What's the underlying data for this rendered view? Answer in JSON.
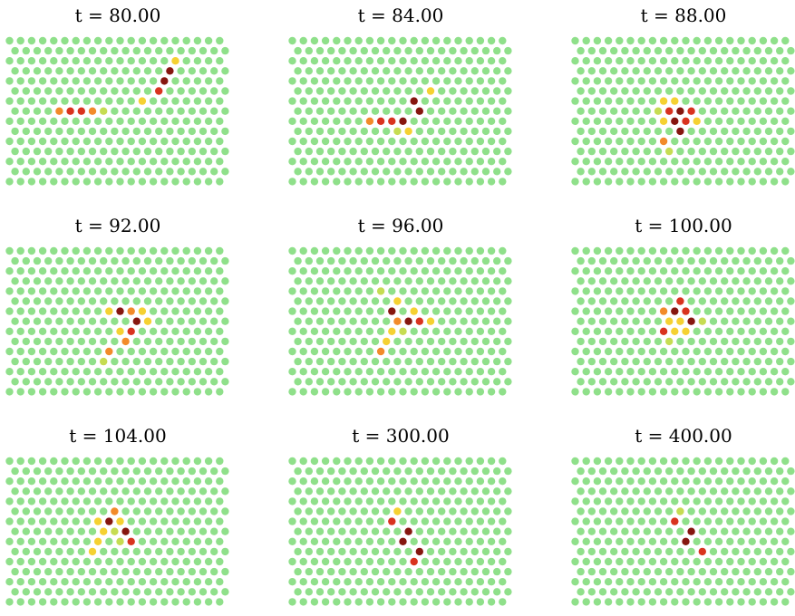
{
  "colors": {
    "background": "#ffffff",
    "bulk": "#8fe08a",
    "yellow": "#f5d132",
    "yellow_green": "#c6dc52",
    "orange": "#f28b2a",
    "red": "#d9331f",
    "dark_red": "#861710"
  },
  "lattice": {
    "rows": 15,
    "cols": 20
  },
  "panels": [
    {
      "title": "t = 80.00",
      "highlights": [
        {
          "row": 2,
          "col": 15,
          "color": "yellow"
        },
        {
          "row": 3,
          "col": 14,
          "color": "dark_red"
        },
        {
          "row": 4,
          "col": 14,
          "color": "dark_red"
        },
        {
          "row": 5,
          "col": 13,
          "color": "red"
        },
        {
          "row": 6,
          "col": 12,
          "color": "yellow"
        },
        {
          "row": 7,
          "col": 4,
          "color": "orange"
        },
        {
          "row": 7,
          "col": 5,
          "color": "red"
        },
        {
          "row": 7,
          "col": 6,
          "color": "red"
        },
        {
          "row": 7,
          "col": 7,
          "color": "orange"
        },
        {
          "row": 7,
          "col": 8,
          "color": "yellow_green"
        }
      ]
    },
    {
      "title": "t = 84.00",
      "highlights": [
        {
          "row": 5,
          "col": 12,
          "color": "yellow"
        },
        {
          "row": 6,
          "col": 11,
          "color": "dark_red"
        },
        {
          "row": 7,
          "col": 11,
          "color": "dark_red"
        },
        {
          "row": 8,
          "col": 10,
          "color": "dark_red"
        },
        {
          "row": 8,
          "col": 7,
          "color": "orange"
        },
        {
          "row": 8,
          "col": 8,
          "color": "red"
        },
        {
          "row": 8,
          "col": 9,
          "color": "red"
        },
        {
          "row": 9,
          "col": 10,
          "color": "yellow"
        },
        {
          "row": 9,
          "col": 9,
          "color": "yellow_green"
        }
      ]
    },
    {
      "title": "t = 88.00",
      "highlights": [
        {
          "row": 6,
          "col": 8,
          "color": "yellow"
        },
        {
          "row": 6,
          "col": 9,
          "color": "yellow"
        },
        {
          "row": 7,
          "col": 7,
          "color": "yellow_green"
        },
        {
          "row": 7,
          "col": 8,
          "color": "red"
        },
        {
          "row": 7,
          "col": 9,
          "color": "dark_red"
        },
        {
          "row": 7,
          "col": 10,
          "color": "red"
        },
        {
          "row": 8,
          "col": 8,
          "color": "yellow"
        },
        {
          "row": 8,
          "col": 9,
          "color": "dark_red"
        },
        {
          "row": 8,
          "col": 10,
          "color": "red"
        },
        {
          "row": 8,
          "col": 11,
          "color": "yellow"
        },
        {
          "row": 9,
          "col": 9,
          "color": "dark_red"
        },
        {
          "row": 10,
          "col": 8,
          "color": "orange"
        },
        {
          "row": 11,
          "col": 8,
          "color": "yellow_green"
        }
      ]
    },
    {
      "title": "t = 92.00",
      "highlights": [
        {
          "row": 6,
          "col": 9,
          "color": "yellow"
        },
        {
          "row": 6,
          "col": 10,
          "color": "dark_red"
        },
        {
          "row": 6,
          "col": 11,
          "color": "orange"
        },
        {
          "row": 6,
          "col": 12,
          "color": "yellow"
        },
        {
          "row": 7,
          "col": 11,
          "color": "dark_red"
        },
        {
          "row": 7,
          "col": 12,
          "color": "yellow"
        },
        {
          "row": 8,
          "col": 10,
          "color": "yellow"
        },
        {
          "row": 8,
          "col": 11,
          "color": "red"
        },
        {
          "row": 9,
          "col": 10,
          "color": "orange"
        },
        {
          "row": 10,
          "col": 9,
          "color": "orange"
        },
        {
          "row": 11,
          "col": 8,
          "color": "yellow_green"
        }
      ]
    },
    {
      "title": "t = 96.00",
      "highlights": [
        {
          "row": 4,
          "col": 8,
          "color": "yellow_green"
        },
        {
          "row": 5,
          "col": 9,
          "color": "yellow"
        },
        {
          "row": 6,
          "col": 9,
          "color": "dark_red"
        },
        {
          "row": 6,
          "col": 11,
          "color": "yellow"
        },
        {
          "row": 7,
          "col": 9,
          "color": "orange"
        },
        {
          "row": 7,
          "col": 10,
          "color": "dark_red"
        },
        {
          "row": 7,
          "col": 11,
          "color": "red"
        },
        {
          "row": 7,
          "col": 12,
          "color": "yellow"
        },
        {
          "row": 8,
          "col": 9,
          "color": "yellow"
        },
        {
          "row": 8,
          "col": 10,
          "color": "yellow_green"
        },
        {
          "row": 9,
          "col": 8,
          "color": "yellow"
        },
        {
          "row": 10,
          "col": 8,
          "color": "orange"
        }
      ]
    },
    {
      "title": "t = 100.00",
      "highlights": [
        {
          "row": 5,
          "col": 9,
          "color": "red"
        },
        {
          "row": 6,
          "col": 8,
          "color": "orange"
        },
        {
          "row": 6,
          "col": 9,
          "color": "dark_red"
        },
        {
          "row": 6,
          "col": 10,
          "color": "red"
        },
        {
          "row": 7,
          "col": 8,
          "color": "yellow"
        },
        {
          "row": 7,
          "col": 9,
          "color": "yellow"
        },
        {
          "row": 7,
          "col": 10,
          "color": "dark_red"
        },
        {
          "row": 7,
          "col": 11,
          "color": "yellow_green"
        },
        {
          "row": 8,
          "col": 8,
          "color": "red"
        },
        {
          "row": 8,
          "col": 9,
          "color": "yellow"
        },
        {
          "row": 8,
          "col": 10,
          "color": "yellow"
        },
        {
          "row": 9,
          "col": 8,
          "color": "yellow_green"
        }
      ]
    },
    {
      "title": "t = 104.00",
      "highlights": [
        {
          "row": 5,
          "col": 9,
          "color": "orange"
        },
        {
          "row": 6,
          "col": 8,
          "color": "yellow"
        },
        {
          "row": 6,
          "col": 9,
          "color": "dark_red"
        },
        {
          "row": 6,
          "col": 10,
          "color": "yellow"
        },
        {
          "row": 7,
          "col": 9,
          "color": "yellow_green"
        },
        {
          "row": 7,
          "col": 10,
          "color": "dark_red"
        },
        {
          "row": 7,
          "col": 8,
          "color": "yellow"
        },
        {
          "row": 8,
          "col": 8,
          "color": "yellow"
        },
        {
          "row": 8,
          "col": 10,
          "color": "yellow_green"
        },
        {
          "row": 8,
          "col": 11,
          "color": "red"
        },
        {
          "row": 9,
          "col": 7,
          "color": "yellow"
        }
      ]
    },
    {
      "title": "t = 300.00",
      "highlights": [
        {
          "row": 5,
          "col": 9,
          "color": "yellow"
        },
        {
          "row": 6,
          "col": 9,
          "color": "red"
        },
        {
          "row": 7,
          "col": 10,
          "color": "dark_red"
        },
        {
          "row": 8,
          "col": 10,
          "color": "dark_red"
        },
        {
          "row": 9,
          "col": 11,
          "color": "dark_red"
        },
        {
          "row": 10,
          "col": 11,
          "color": "red"
        }
      ]
    },
    {
      "title": "t = 400.00",
      "highlights": [
        {
          "row": 5,
          "col": 9,
          "color": "yellow_green"
        },
        {
          "row": 6,
          "col": 9,
          "color": "red"
        },
        {
          "row": 7,
          "col": 10,
          "color": "dark_red"
        },
        {
          "row": 8,
          "col": 10,
          "color": "dark_red"
        },
        {
          "row": 9,
          "col": 11,
          "color": "red"
        }
      ]
    }
  ]
}
